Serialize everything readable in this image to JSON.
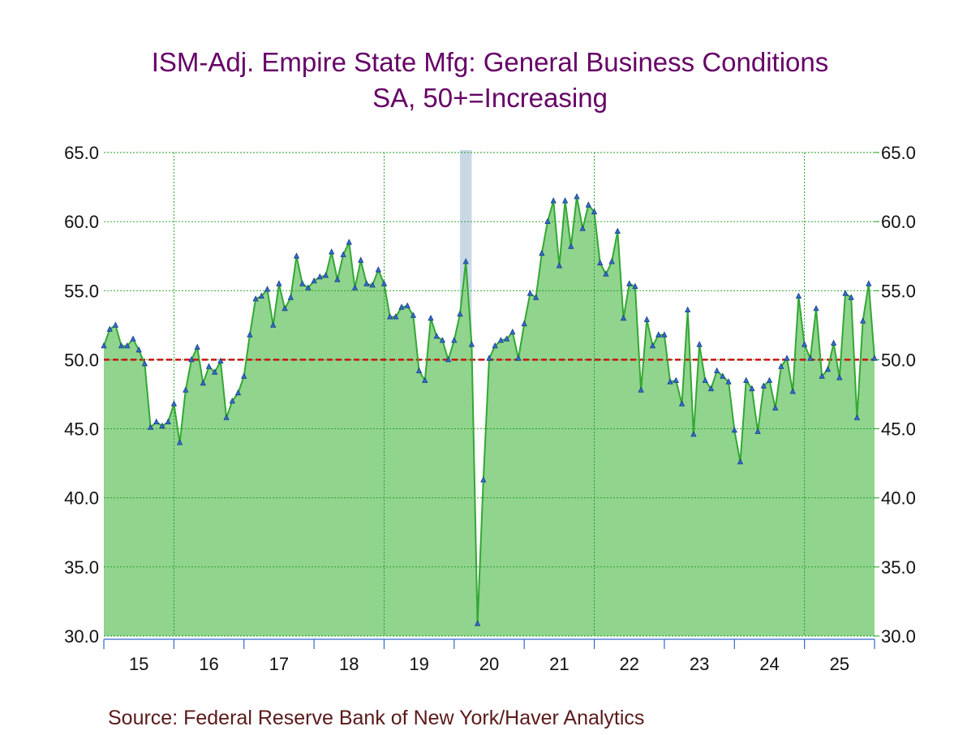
{
  "title_line1": "ISM-Adj. Empire State Mfg: General Business Conditions",
  "title_line2": "SA, 50+=Increasing",
  "source": "Source:  Federal Reserve Bank of New York/Haver Analytics",
  "colors": {
    "title": "#660066",
    "area_fill": "#90d48e",
    "line": "#33a833",
    "marker_fill": "#3070c8",
    "marker_stroke": "#1a3a8a",
    "reference_line": "#cc1111",
    "grid": "#1a9a1a",
    "recession": "#c8d8e4",
    "axis": "#3366cc",
    "source": "#5a1a1a"
  },
  "chart_data": {
    "type": "area",
    "title": "ISM-Adj. Empire State Mfg: General Business Conditions",
    "subtitle": "SA, 50+=Increasing",
    "xlabel": "",
    "ylabel": "",
    "ylim": [
      30,
      65
    ],
    "yticks": [
      "30.0",
      "35.0",
      "40.0",
      "45.0",
      "50.0",
      "55.0",
      "60.0",
      "65.0"
    ],
    "ytick_values": [
      30,
      35,
      40,
      45,
      50,
      55,
      60,
      65
    ],
    "xlim": [
      2015.0,
      2026.0
    ],
    "year_labels": [
      "15",
      "16",
      "17",
      "18",
      "19",
      "20",
      "21",
      "22",
      "23",
      "24",
      "25"
    ],
    "year_label_values": [
      2015.5,
      2016.5,
      2017.5,
      2018.5,
      2019.5,
      2020.5,
      2021.5,
      2022.5,
      2023.5,
      2024.5,
      2025.5
    ],
    "x_gridlines": [
      2016,
      2019,
      2022,
      2025
    ],
    "reference_value": 50,
    "recession": [
      2020.083,
      2020.25
    ],
    "series": [
      {
        "name": "ISM-Adj. Empire State Mfg: General Business Conditions",
        "start": 2015.0,
        "step": 0.08333333,
        "values": [
          51.0,
          52.2,
          52.5,
          51.0,
          51.0,
          51.5,
          50.7,
          49.7,
          45.1,
          45.5,
          45.2,
          45.5,
          46.8,
          44.0,
          47.8,
          50.0,
          50.9,
          48.3,
          49.5,
          49.1,
          49.9,
          45.8,
          47.0,
          47.6,
          48.8,
          51.8,
          54.4,
          54.6,
          55.1,
          52.5,
          55.5,
          53.7,
          54.5,
          57.5,
          55.5,
          55.2,
          55.7,
          56.0,
          56.1,
          57.8,
          55.8,
          57.6,
          58.5,
          55.2,
          57.2,
          55.5,
          55.4,
          56.5,
          55.5,
          53.1,
          53.1,
          53.8,
          53.9,
          53.2,
          49.2,
          48.5,
          53.0,
          51.7,
          51.4,
          50.0,
          51.4,
          53.3,
          57.1,
          51.1,
          30.9,
          41.3,
          50.1,
          51.0,
          51.4,
          51.5,
          52.0,
          50.1,
          52.6,
          54.8,
          54.5,
          57.7,
          60.0,
          61.5,
          56.8,
          61.5,
          58.2,
          61.8,
          59.5,
          61.2,
          60.7,
          57.0,
          56.2,
          57.1,
          59.3,
          53.0,
          55.5,
          55.3,
          47.8,
          52.9,
          51.0,
          51.8,
          51.8,
          48.4,
          48.5,
          46.8,
          53.6,
          44.6,
          51.1,
          48.5,
          47.9,
          49.2,
          48.8,
          48.4,
          44.9,
          42.6,
          48.5,
          47.9,
          44.8,
          48.1,
          48.5,
          46.5,
          49.5,
          50.1,
          47.7,
          54.6,
          51.1,
          50.1,
          53.7,
          48.8,
          49.3,
          51.2,
          48.7,
          54.8,
          54.5,
          45.8,
          52.8,
          55.5,
          50.1
        ]
      }
    ]
  }
}
